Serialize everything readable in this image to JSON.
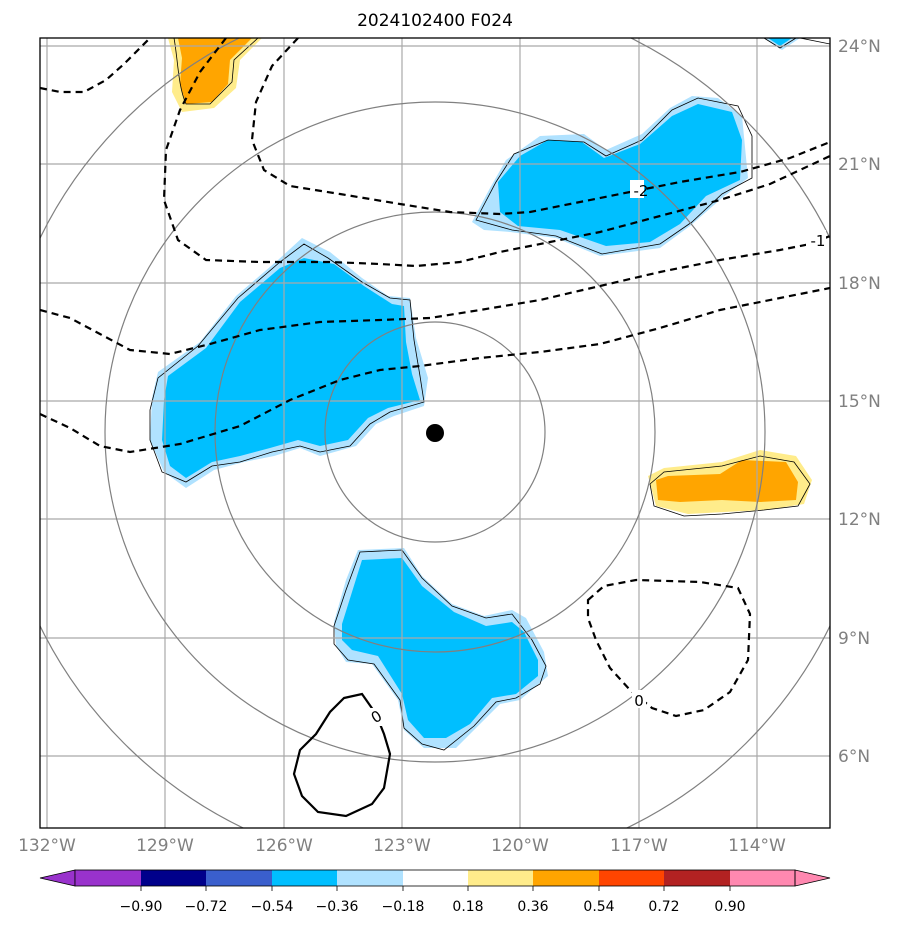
{
  "title": "2024102400 F024",
  "map": {
    "lat_labels": [
      "24°N",
      "21°N",
      "18°N",
      "15°N",
      "12°N",
      "9°N",
      "6°N"
    ],
    "lon_labels": [
      "132°W",
      "129°W",
      "126°W",
      "123°W",
      "120°W",
      "117°W",
      "114°W"
    ],
    "storm_center": "122.2°W 14.2°N",
    "contour_labels": [
      "-2",
      "-1",
      "0",
      "0"
    ]
  },
  "colorbar": {
    "ticks": [
      "−0.90",
      "−0.72",
      "−0.54",
      "−0.36",
      "−0.18",
      "0.18",
      "0.36",
      "0.54",
      "0.72",
      "0.90"
    ],
    "colors": [
      "#9932cc",
      "#00008b",
      "#3a5fcd",
      "#00bfff",
      "#b0e2ff",
      "#ffffff",
      "#ffec8b",
      "#ffa500",
      "#ff4500",
      "#b22222",
      "#ff88b0"
    ]
  },
  "colors": {
    "cold_strong": "#00bfff",
    "cold_weak": "#b0e2ff",
    "warm_weak": "#ffec8b",
    "warm_strong": "#ffa500",
    "grid": "#a9a9a9",
    "rings": "#808080"
  }
}
